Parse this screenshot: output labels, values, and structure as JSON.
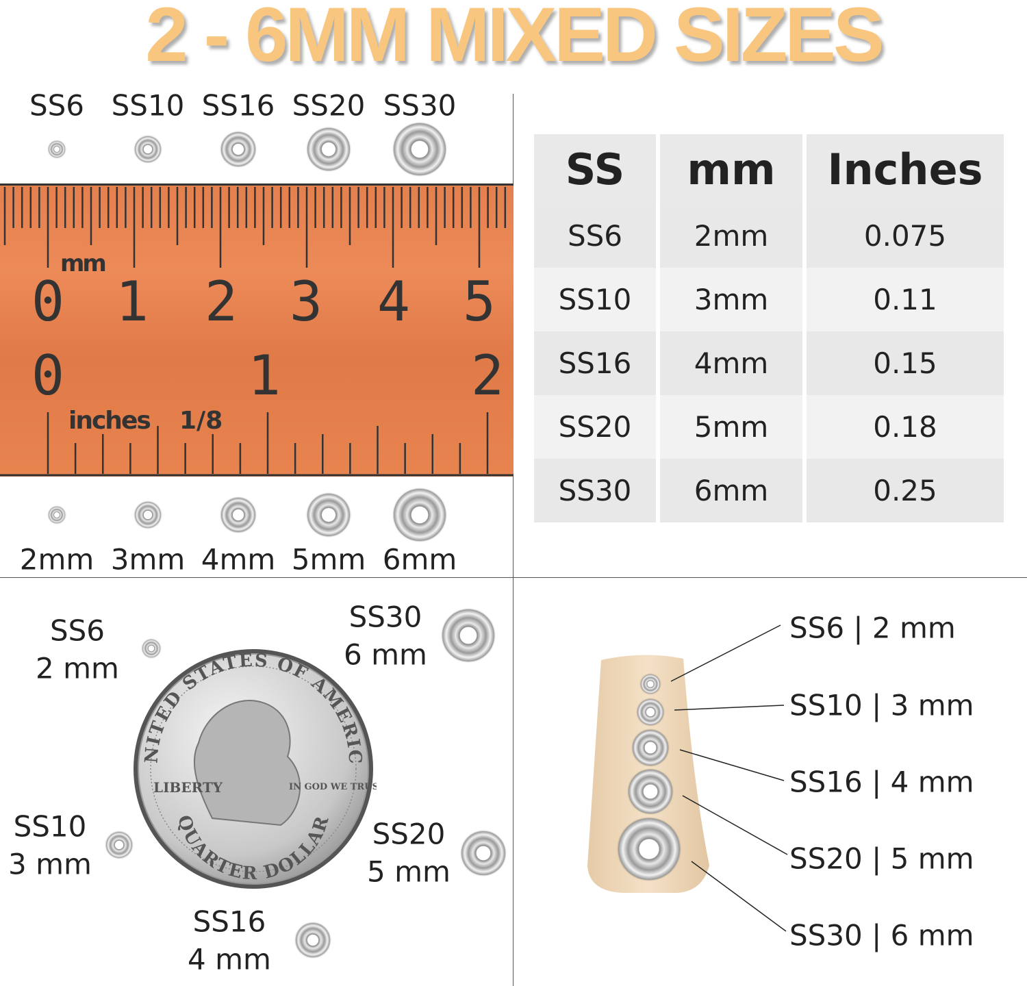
{
  "title": "2 - 6MM MIXED SIZES",
  "ruler_section": {
    "ss_labels": [
      "SS6",
      "SS10",
      "SS16",
      "SS20",
      "SS30"
    ],
    "mm_labels": [
      "2mm",
      "3mm",
      "4mm",
      "5mm",
      "6mm"
    ],
    "ruler": {
      "color": "#e8834f",
      "metric_unit": "mm",
      "metric_numbers": [
        "0",
        "1",
        "2",
        "3",
        "4",
        "5"
      ],
      "imperial_unit": "inches",
      "imperial_fraction": "1/8",
      "imperial_numbers": [
        "0",
        "1",
        "2"
      ]
    }
  },
  "table": {
    "headers": [
      "SS",
      "mm",
      "Inches"
    ],
    "rows": [
      [
        "SS6",
        "2mm",
        "0.075"
      ],
      [
        "SS10",
        "3mm",
        "0.11"
      ],
      [
        "SS16",
        "4mm",
        "0.15"
      ],
      [
        "SS20",
        "5mm",
        "0.18"
      ],
      [
        "SS30",
        "6mm",
        "0.25"
      ]
    ]
  },
  "coin_section": {
    "items": [
      {
        "ss": "SS6",
        "mm": "2 mm"
      },
      {
        "ss": "SS30",
        "mm": "6 mm"
      },
      {
        "ss": "SS10",
        "mm": "3 mm"
      },
      {
        "ss": "SS20",
        "mm": "5 mm"
      },
      {
        "ss": "SS16",
        "mm": "4 mm"
      }
    ],
    "coin_lettering": [
      "UNITED STATES OF AMERICA",
      "LIBERTY",
      "IN GOD WE TRUST",
      "QUARTER DOLLAR"
    ]
  },
  "nail_section": {
    "labels": [
      "SS6 | 2 mm",
      "SS10 | 3 mm",
      "SS16 | 4 mm",
      "SS20 | 5 mm",
      "SS30 | 6 mm"
    ],
    "nail_color": "#f1dcc0"
  }
}
